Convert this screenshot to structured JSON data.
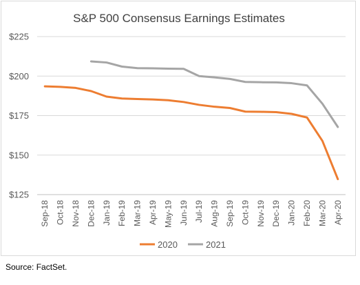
{
  "chart_data": {
    "type": "line",
    "title": "S&P 500 Consensus Earnings Estimates",
    "categories": [
      "Sep-18",
      "Oct-18",
      "Nov-18",
      "Dec-18",
      "Jan-19",
      "Feb-19",
      "Mar-19",
      "Apr-19",
      "May-19",
      "Jun-19",
      "Jul-19",
      "Aug-19",
      "Sep-19",
      "Oct-19",
      "Nov-19",
      "Dec-19",
      "Jan-20",
      "Feb-20",
      "Mar-20",
      "Apr-20"
    ],
    "series": [
      {
        "name": "2020",
        "color": "#ed7d31",
        "values": [
          193.5,
          193.2,
          192.5,
          190.5,
          187.0,
          185.8,
          185.5,
          185.2,
          184.7,
          183.6,
          181.8,
          180.6,
          179.8,
          177.5,
          177.4,
          177.2,
          176.1,
          173.8,
          159.0,
          134.8
        ]
      },
      {
        "name": "2021",
        "color": "#a5a5a5",
        "values": [
          null,
          null,
          null,
          209.3,
          208.6,
          206.0,
          205.0,
          204.9,
          204.7,
          204.6,
          200.0,
          199.2,
          198.2,
          196.3,
          196.1,
          196.0,
          195.5,
          194.1,
          182.5,
          167.8
        ]
      }
    ],
    "y_ticks": [
      "$125",
      "$150",
      "$175",
      "$200",
      "$225"
    ],
    "ylim": [
      125,
      225
    ],
    "grid": true,
    "legend_position": "bottom",
    "source": "Source: FactSet."
  }
}
